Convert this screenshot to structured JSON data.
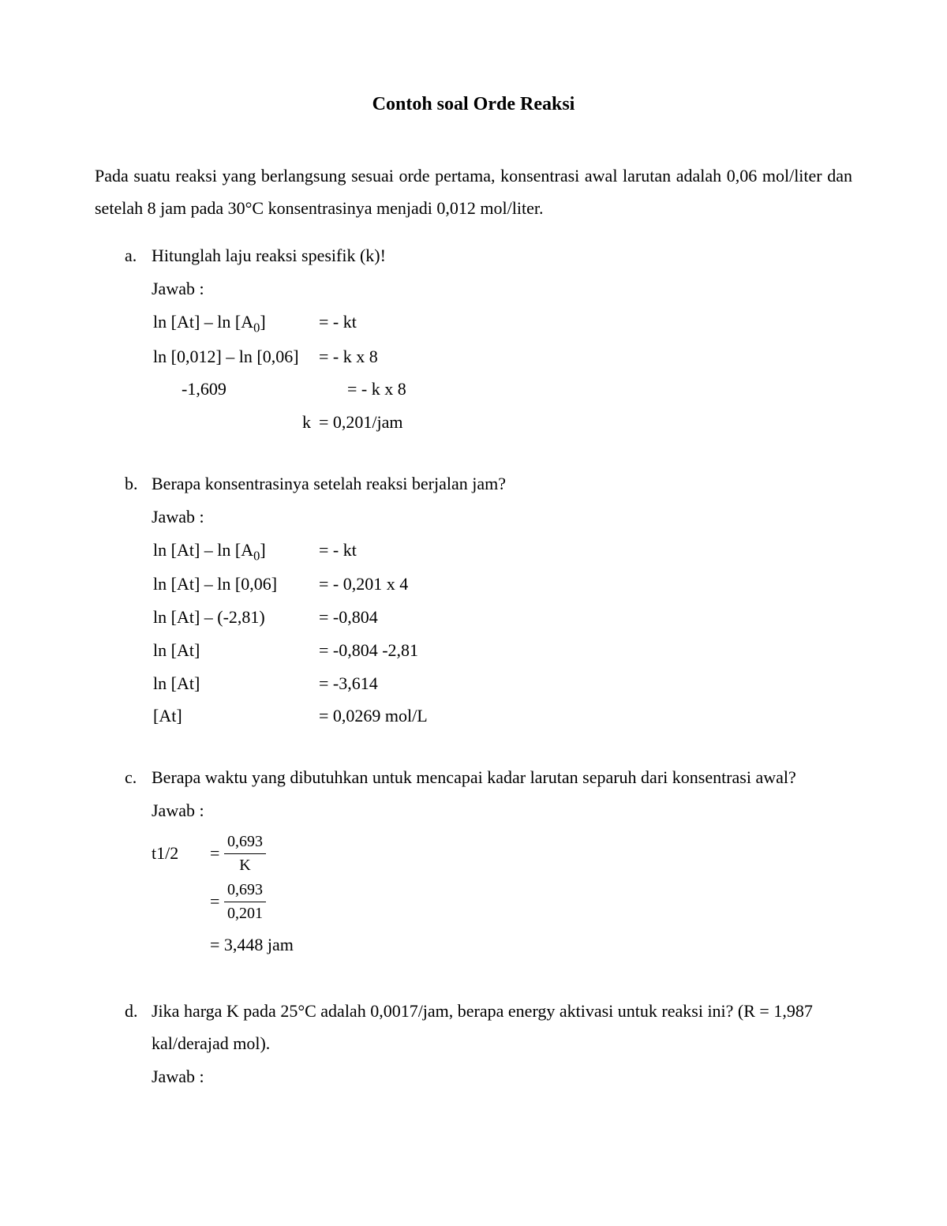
{
  "title": "Contoh soal Orde Reaksi",
  "intro": "Pada suatu reaksi yang berlangsung sesuai orde pertama, konsentrasi awal larutan adalah 0,06 mol/liter dan setelah 8 jam pada 30°C konsentrasinya menjadi 0,012 mol/liter.",
  "answer_label": "Jawab :",
  "a": {
    "marker": "a.",
    "question": "Hitunglah laju reaksi spesifik (k)!",
    "eq1_l": "ln [At] – ln [A",
    "eq1_sub": "0",
    "eq1_l2": "]",
    "eq1_r": "= - kt",
    "eq2_l": "ln [0,012] – ln [0,06]",
    "eq2_r": "= - k x 8",
    "eq3_l": "-1,609",
    "eq3_r": "= - k x 8",
    "eq4_l": "k",
    "eq4_r": "= 0,201/jam"
  },
  "b": {
    "marker": "b.",
    "question": "Berapa konsentrasinya setelah reaksi berjalan  jam?",
    "eq1_l": "ln [At] – ln [A",
    "eq1_sub": "0",
    "eq1_l2": "]",
    "eq1_r": "= - kt",
    "eq2_l": "ln [At] – ln [0,06]",
    "eq2_r": "= - 0,201 x 4",
    "eq3_l": "ln [At] – (-2,81)",
    "eq3_r": "= -0,804",
    "eq4_l": "ln [At]",
    "eq4_r": "= -0,804 -2,81",
    "eq5_l": "ln [At]",
    "eq5_r": "= -3,614",
    "eq6_l": "[At]",
    "eq6_r": "= 0,0269 mol/L"
  },
  "c": {
    "marker": "c.",
    "question": "Berapa waktu yang dibutuhkan untuk mencapai kadar larutan separuh dari konsentrasi awal?",
    "lhs": "t1/2",
    "eq": "=",
    "f1_num": "0,693",
    "f1_den": "K",
    "f2_num": "0,693",
    "f2_den": "0,201",
    "result": "= 3,448 jam"
  },
  "d": {
    "marker": "d.",
    "question": "Jika harga K pada 25°C adalah 0,0017/jam, berapa energy aktivasi untuk reaksi ini? (R = 1,987 kal/derajad mol)."
  }
}
